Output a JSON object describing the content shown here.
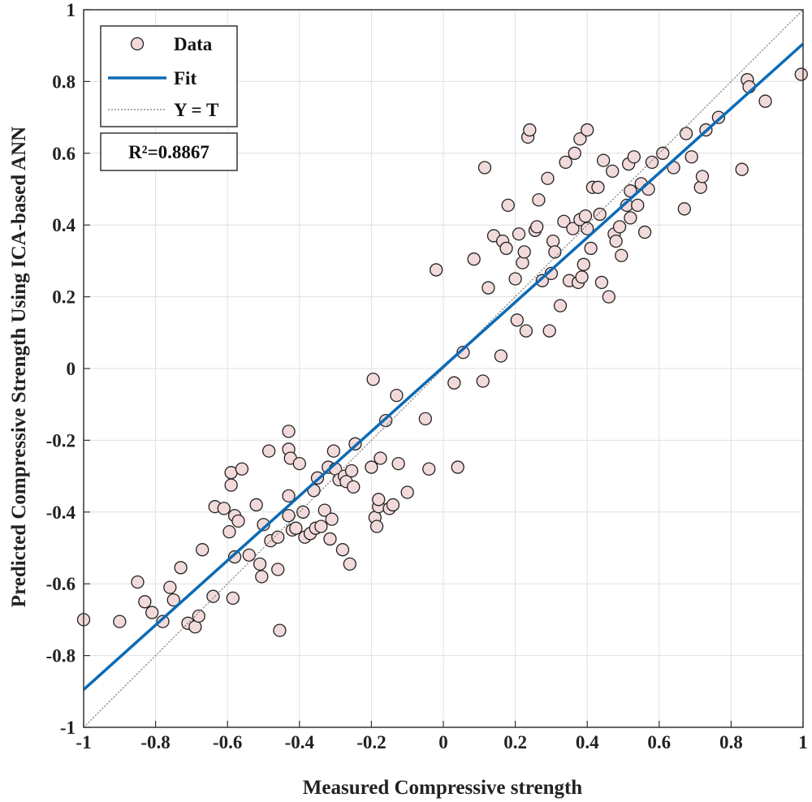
{
  "chart_data": {
    "type": "scatter",
    "title": "",
    "xlabel": "Measured Compressive strength",
    "ylabel": "Predicted Compressive Strength Using ICA-based ANN",
    "xlim": [
      -1,
      1
    ],
    "ylim": [
      -1,
      1
    ],
    "xticks": [
      "-1",
      "-0.8",
      "-0.6",
      "-0.4",
      "-0.2",
      "0",
      "0.2",
      "0.4",
      "0.6",
      "0.8",
      "1"
    ],
    "yticks": [
      "-1",
      "-0.8",
      "-0.6",
      "-0.4",
      "-0.2",
      "0",
      "0.2",
      "0.4",
      "0.6",
      "0.8",
      "1"
    ],
    "grid": true,
    "legend_position": "top-left",
    "legend": [
      {
        "label": "Data",
        "kind": "marker"
      },
      {
        "label": "Fit",
        "kind": "line"
      },
      {
        "label": "Y = T",
        "kind": "dotted-line"
      }
    ],
    "annotation": "R²=0.8867",
    "fit": {
      "slope": 0.9,
      "intercept": 0.005
    },
    "identity_line": {
      "x": [
        -1,
        1
      ],
      "y": [
        -1,
        1
      ]
    },
    "colors": {
      "marker_fill": "#f2dada",
      "marker_edge": "#222222",
      "fit_line": "#0b6bb5",
      "identity_line": "#777777",
      "grid": "#e0e0e0"
    },
    "series": [
      {
        "name": "Data",
        "points": [
          [
            -1.0,
            -0.7
          ],
          [
            -0.9,
            -0.705
          ],
          [
            -0.85,
            -0.595
          ],
          [
            -0.83,
            -0.65
          ],
          [
            -0.81,
            -0.68
          ],
          [
            -0.78,
            -0.705
          ],
          [
            -0.76,
            -0.61
          ],
          [
            -0.75,
            -0.645
          ],
          [
            -0.73,
            -0.555
          ],
          [
            -0.71,
            -0.71
          ],
          [
            -0.69,
            -0.72
          ],
          [
            -0.68,
            -0.69
          ],
          [
            -0.67,
            -0.505
          ],
          [
            -0.64,
            -0.635
          ],
          [
            -0.635,
            -0.385
          ],
          [
            -0.61,
            -0.39
          ],
          [
            -0.595,
            -0.455
          ],
          [
            -0.59,
            -0.29
          ],
          [
            -0.59,
            -0.325
          ],
          [
            -0.58,
            -0.525
          ],
          [
            -0.585,
            -0.64
          ],
          [
            -0.58,
            -0.41
          ],
          [
            -0.57,
            -0.425
          ],
          [
            -0.56,
            -0.28
          ],
          [
            -0.54,
            -0.52
          ],
          [
            -0.52,
            -0.38
          ],
          [
            -0.51,
            -0.545
          ],
          [
            -0.505,
            -0.58
          ],
          [
            -0.5,
            -0.435
          ],
          [
            -0.485,
            -0.23
          ],
          [
            -0.48,
            -0.48
          ],
          [
            -0.46,
            -0.47
          ],
          [
            -0.46,
            -0.56
          ],
          [
            -0.455,
            -0.73
          ],
          [
            -0.43,
            -0.175
          ],
          [
            -0.43,
            -0.225
          ],
          [
            -0.43,
            -0.41
          ],
          [
            -0.43,
            -0.355
          ],
          [
            -0.425,
            -0.25
          ],
          [
            -0.42,
            -0.45
          ],
          [
            -0.41,
            -0.445
          ],
          [
            -0.4,
            -0.265
          ],
          [
            -0.39,
            -0.4
          ],
          [
            -0.385,
            -0.47
          ],
          [
            -0.37,
            -0.46
          ],
          [
            -0.36,
            -0.34
          ],
          [
            -0.355,
            -0.445
          ],
          [
            -0.35,
            -0.305
          ],
          [
            -0.34,
            -0.44
          ],
          [
            -0.33,
            -0.395
          ],
          [
            -0.32,
            -0.275
          ],
          [
            -0.315,
            -0.475
          ],
          [
            -0.31,
            -0.42
          ],
          [
            -0.305,
            -0.23
          ],
          [
            -0.3,
            -0.28
          ],
          [
            -0.29,
            -0.31
          ],
          [
            -0.28,
            -0.505
          ],
          [
            -0.275,
            -0.3
          ],
          [
            -0.27,
            -0.315
          ],
          [
            -0.26,
            -0.545
          ],
          [
            -0.255,
            -0.285
          ],
          [
            -0.25,
            -0.33
          ],
          [
            -0.245,
            -0.21
          ],
          [
            -0.2,
            -0.275
          ],
          [
            -0.195,
            -0.03
          ],
          [
            -0.19,
            -0.415
          ],
          [
            -0.185,
            -0.44
          ],
          [
            -0.18,
            -0.385
          ],
          [
            -0.18,
            -0.365
          ],
          [
            -0.175,
            -0.25
          ],
          [
            -0.16,
            -0.145
          ],
          [
            -0.15,
            -0.39
          ],
          [
            -0.14,
            -0.38
          ],
          [
            -0.13,
            -0.075
          ],
          [
            -0.125,
            -0.265
          ],
          [
            -0.1,
            -0.345
          ],
          [
            -0.05,
            -0.14
          ],
          [
            -0.04,
            -0.28
          ],
          [
            -0.02,
            0.275
          ],
          [
            0.03,
            -0.04
          ],
          [
            0.04,
            -0.275
          ],
          [
            0.055,
            0.045
          ],
          [
            0.085,
            0.305
          ],
          [
            0.11,
            -0.035
          ],
          [
            0.115,
            0.56
          ],
          [
            0.125,
            0.225
          ],
          [
            0.14,
            0.37
          ],
          [
            0.16,
            0.035
          ],
          [
            0.165,
            0.355
          ],
          [
            0.175,
            0.335
          ],
          [
            0.18,
            0.455
          ],
          [
            0.2,
            0.25
          ],
          [
            0.205,
            0.135
          ],
          [
            0.21,
            0.375
          ],
          [
            0.22,
            0.295
          ],
          [
            0.225,
            0.325
          ],
          [
            0.23,
            0.105
          ],
          [
            0.235,
            0.645
          ],
          [
            0.24,
            0.665
          ],
          [
            0.255,
            0.385
          ],
          [
            0.26,
            0.395
          ],
          [
            0.265,
            0.47
          ],
          [
            0.275,
            0.245
          ],
          [
            0.29,
            0.53
          ],
          [
            0.295,
            0.105
          ],
          [
            0.3,
            0.265
          ],
          [
            0.305,
            0.355
          ],
          [
            0.31,
            0.325
          ],
          [
            0.325,
            0.175
          ],
          [
            0.335,
            0.41
          ],
          [
            0.34,
            0.575
          ],
          [
            0.35,
            0.245
          ],
          [
            0.36,
            0.39
          ],
          [
            0.365,
            0.6
          ],
          [
            0.375,
            0.24
          ],
          [
            0.38,
            0.64
          ],
          [
            0.38,
            0.415
          ],
          [
            0.385,
            0.255
          ],
          [
            0.39,
            0.29
          ],
          [
            0.395,
            0.425
          ],
          [
            0.4,
            0.39
          ],
          [
            0.4,
            0.665
          ],
          [
            0.41,
            0.335
          ],
          [
            0.415,
            0.505
          ],
          [
            0.43,
            0.505
          ],
          [
            0.435,
            0.43
          ],
          [
            0.44,
            0.24
          ],
          [
            0.445,
            0.58
          ],
          [
            0.46,
            0.2
          ],
          [
            0.47,
            0.55
          ],
          [
            0.475,
            0.375
          ],
          [
            0.48,
            0.355
          ],
          [
            0.49,
            0.395
          ],
          [
            0.495,
            0.315
          ],
          [
            0.51,
            0.455
          ],
          [
            0.515,
            0.57
          ],
          [
            0.52,
            0.495
          ],
          [
            0.52,
            0.42
          ],
          [
            0.53,
            0.59
          ],
          [
            0.54,
            0.455
          ],
          [
            0.55,
            0.515
          ],
          [
            0.56,
            0.38
          ],
          [
            0.57,
            0.5
          ],
          [
            0.58,
            0.575
          ],
          [
            0.61,
            0.6
          ],
          [
            0.64,
            0.56
          ],
          [
            0.67,
            0.445
          ],
          [
            0.675,
            0.655
          ],
          [
            0.69,
            0.59
          ],
          [
            0.715,
            0.505
          ],
          [
            0.72,
            0.535
          ],
          [
            0.73,
            0.665
          ],
          [
            0.765,
            0.7
          ],
          [
            0.83,
            0.555
          ],
          [
            0.845,
            0.805
          ],
          [
            0.85,
            0.785
          ],
          [
            0.895,
            0.745
          ],
          [
            0.995,
            0.82
          ]
        ]
      }
    ]
  }
}
